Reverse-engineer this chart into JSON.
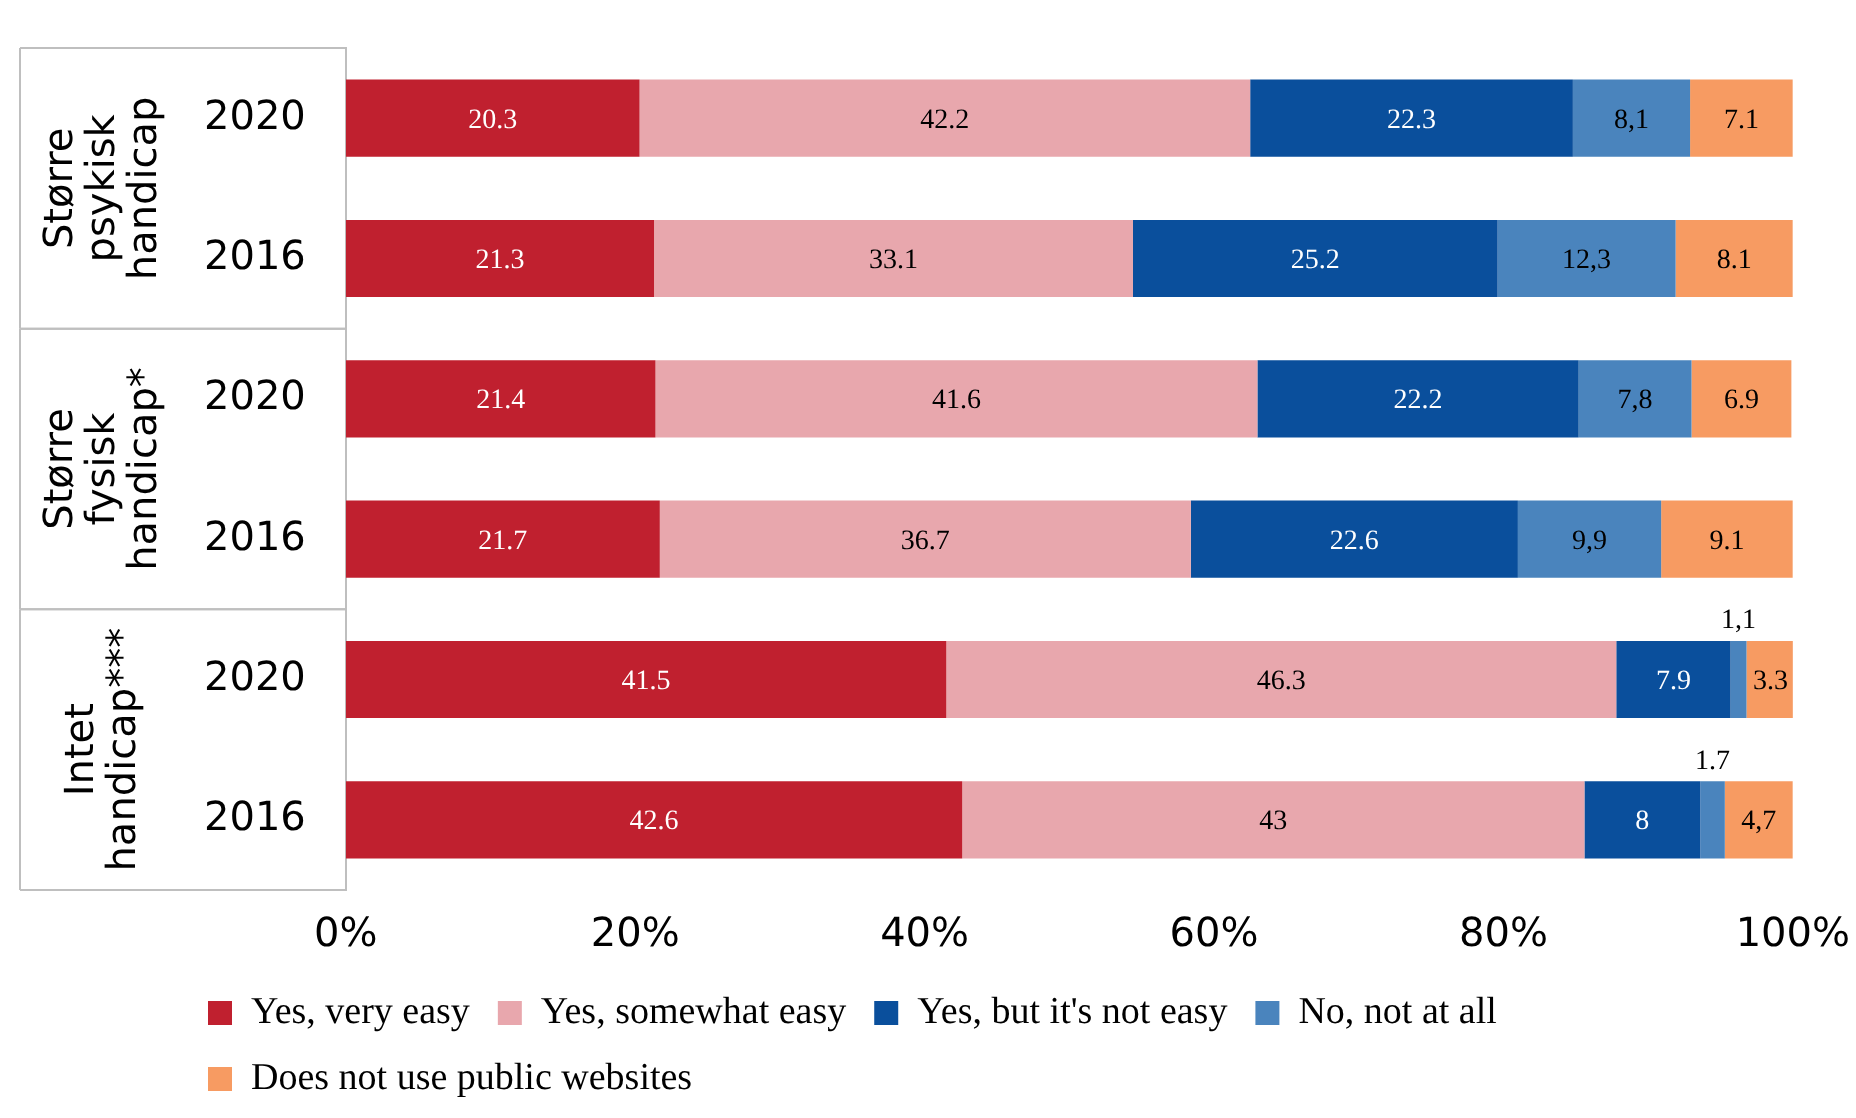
{
  "chart_data": {
    "type": "bar",
    "orientation": "horizontal",
    "stacked": true,
    "categories": [
      "2020",
      "2016",
      "2020",
      "2016",
      "2020",
      "2016"
    ],
    "annotations": [
      "Større psykisk handicap",
      "Større fysisk handicap*",
      "Intet handicap***"
    ],
    "xlim": [
      0,
      100
    ],
    "xticks": [
      {
        "value": 0,
        "label": "0%"
      },
      {
        "value": 20,
        "label": "20%"
      },
      {
        "value": 40,
        "label": "40%"
      },
      {
        "value": 60,
        "label": "60%"
      },
      {
        "value": 80,
        "label": "80%"
      },
      {
        "value": 100,
        "label": "100%"
      }
    ],
    "grid": false,
    "legend": "bottom",
    "series": [
      {
        "name": "Yes, very easy",
        "color": "#c0202f",
        "values": [
          20.3,
          21.3,
          21.4,
          21.7,
          41.5,
          42.6
        ],
        "value_labels": [
          "20.3",
          "21.3",
          "21.4",
          "21.7",
          "41.5",
          "42.6"
        ]
      },
      {
        "name": "Yes, somewhat easy",
        "color": "#e8a7ad",
        "values": [
          42.2,
          33.1,
          41.6,
          36.7,
          46.3,
          43
        ],
        "value_labels": [
          "42.2",
          "33.1",
          "41.6",
          "36.7",
          "46.3",
          "43"
        ]
      },
      {
        "name": "Yes, but it's not easy",
        "color": "#0a4f9c",
        "values": [
          22.3,
          25.2,
          22.2,
          22.6,
          7.9,
          8
        ],
        "value_labels": [
          "22.3",
          "25.2",
          "22.2",
          "22.6",
          "7.9",
          "8"
        ]
      },
      {
        "name": "No, not at all",
        "color": "#4a84bd",
        "values": [
          8.1,
          12.3,
          7.8,
          9.9,
          1.1,
          1.7
        ],
        "value_labels": [
          "8,1",
          "12,3",
          "7,8",
          "9,9",
          "1,1",
          "1.7"
        ]
      },
      {
        "name": "Does not use public websites",
        "color": "#f79b62",
        "values": [
          7.1,
          8.1,
          6.9,
          9.1,
          3.3,
          4.7
        ],
        "value_labels": [
          "7.1",
          "8.1",
          "6.9",
          "9.1",
          "3.3",
          "4,7"
        ]
      }
    ]
  }
}
